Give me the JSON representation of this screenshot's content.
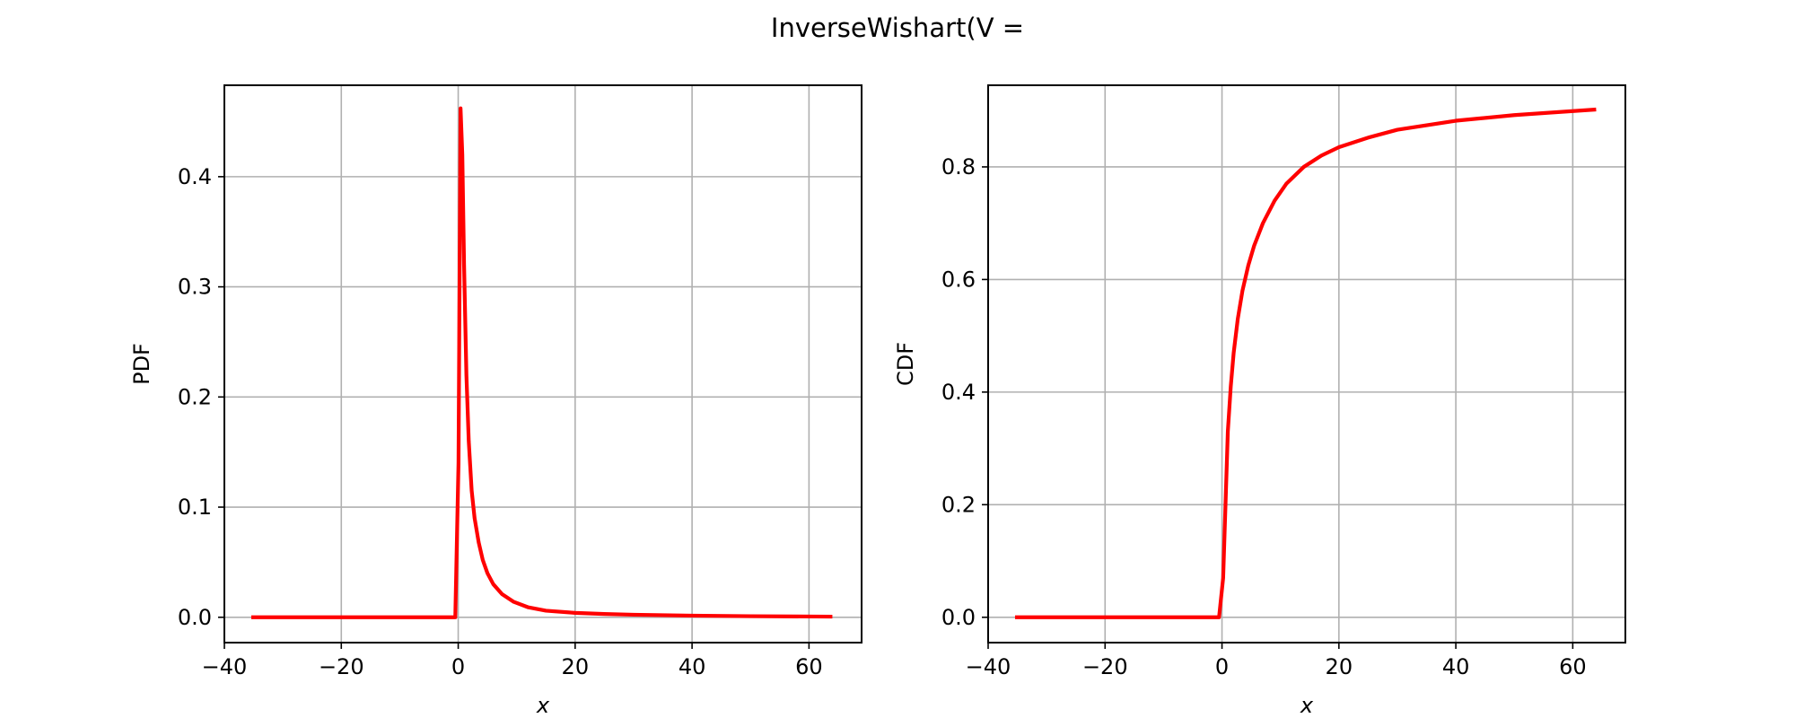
{
  "figure": {
    "title": "InverseWishart(V ="
  },
  "chart_data": [
    {
      "type": "line",
      "title": "",
      "xlabel": "x",
      "ylabel": "PDF",
      "xlim": [
        -40,
        69
      ],
      "ylim": [
        -0.023,
        0.483
      ],
      "xticks": [
        -40,
        -20,
        0,
        20,
        40,
        60
      ],
      "xtick_labels": [
        "−40",
        "−20",
        "0",
        "20",
        "40",
        "60"
      ],
      "yticks": [
        0.0,
        0.1,
        0.2,
        0.3,
        0.4
      ],
      "ytick_labels": [
        "0.0",
        "0.1",
        "0.2",
        "0.3",
        "0.4"
      ],
      "grid": true,
      "series": [
        {
          "color": "#ff0000",
          "x": [
            -35.4,
            -10,
            -0.5,
            0.05,
            0.4,
            0.7,
            1.0,
            1.4,
            1.8,
            2.3,
            2.8,
            3.5,
            4.2,
            5.0,
            6.0,
            7.5,
            9.5,
            12,
            15,
            20,
            25,
            30,
            40,
            50,
            64
          ],
          "y": [
            0.0,
            0.0,
            0.0,
            0.14,
            0.462,
            0.42,
            0.32,
            0.22,
            0.16,
            0.115,
            0.09,
            0.068,
            0.052,
            0.04,
            0.03,
            0.021,
            0.014,
            0.009,
            0.006,
            0.004,
            0.003,
            0.0023,
            0.0015,
            0.001,
            0.0006
          ]
        }
      ]
    },
    {
      "type": "line",
      "title": "",
      "xlabel": "x",
      "ylabel": "CDF",
      "xlim": [
        -40,
        69
      ],
      "ylim": [
        -0.045,
        0.945
      ],
      "xticks": [
        -40,
        -20,
        0,
        20,
        40,
        60
      ],
      "xtick_labels": [
        "−40",
        "−20",
        "0",
        "20",
        "40",
        "60"
      ],
      "yticks": [
        0.0,
        0.2,
        0.4,
        0.6,
        0.8
      ],
      "ytick_labels": [
        "0.0",
        "0.2",
        "0.4",
        "0.6",
        "0.8"
      ],
      "grid": true,
      "series": [
        {
          "color": "#ff0000",
          "x": [
            -35.4,
            -10,
            -0.5,
            0.2,
            0.6,
            1.0,
            1.5,
            2.0,
            2.7,
            3.5,
            4.5,
            5.5,
            7,
            9,
            11,
            14,
            17,
            20,
            25,
            30,
            40,
            50,
            64
          ],
          "y": [
            0.0,
            0.0,
            0.0,
            0.07,
            0.2,
            0.33,
            0.41,
            0.47,
            0.53,
            0.58,
            0.625,
            0.66,
            0.7,
            0.74,
            0.77,
            0.8,
            0.82,
            0.835,
            0.852,
            0.866,
            0.882,
            0.892,
            0.902
          ]
        }
      ]
    }
  ]
}
